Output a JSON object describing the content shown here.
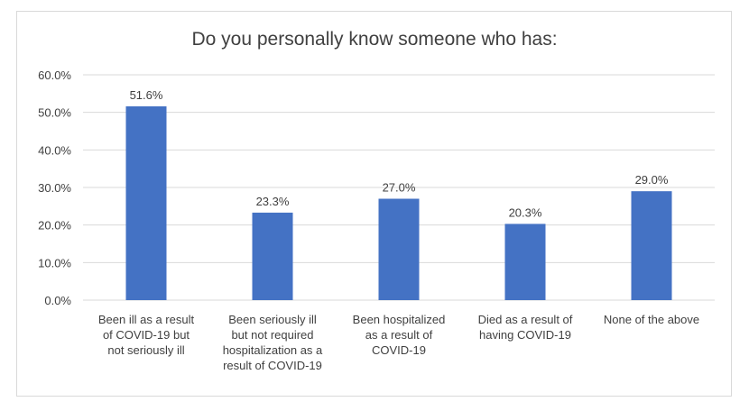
{
  "chart_data": {
    "type": "bar",
    "title": "Do you personally know someone who has:",
    "categories": [
      [
        "Been ill as a result",
        "of COVID-19 but",
        "not seriously ill"
      ],
      [
        "Been seriously ill",
        "but not required",
        "hospitalization as a",
        "result of COVID-19"
      ],
      [
        "Been hospitalized",
        "as a result of",
        "COVID-19"
      ],
      [
        "Died as a result of",
        "having COVID-19"
      ],
      [
        "None of the above"
      ]
    ],
    "values": [
      51.6,
      23.3,
      27.0,
      20.3,
      29.0
    ],
    "data_labels": [
      "51.6%",
      "23.3%",
      "27.0%",
      "20.3%",
      "29.0%"
    ],
    "ylim": [
      0,
      60
    ],
    "yticks": [
      0,
      10,
      20,
      30,
      40,
      50,
      60
    ],
    "ytick_labels": [
      "0.0%",
      "10.0%",
      "20.0%",
      "30.0%",
      "40.0%",
      "50.0%",
      "60.0%"
    ],
    "xlabel": "",
    "ylabel": "",
    "grid": true,
    "bar_color": "#4472C4",
    "grid_color": "#d9d9d9"
  }
}
